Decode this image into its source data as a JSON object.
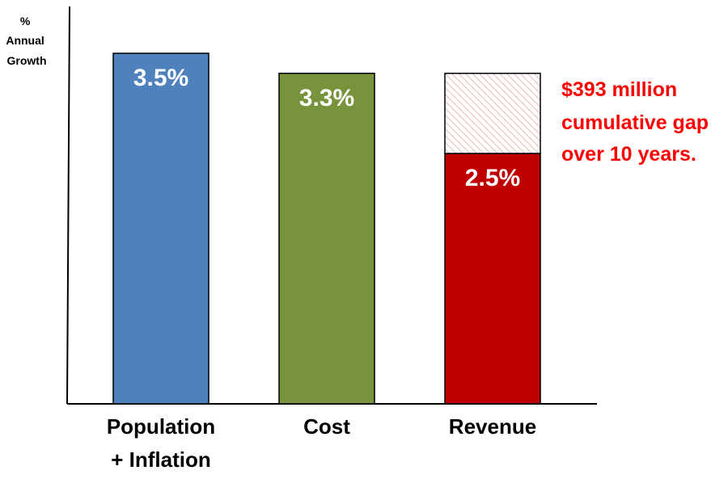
{
  "chart_data": {
    "type": "bar",
    "ylabel": [
      "%",
      "Annual",
      "Growth"
    ],
    "ylim": [
      0,
      3.5
    ],
    "grid": false,
    "categories": [
      [
        "Population",
        "+ Inflation"
      ],
      [
        "Cost"
      ],
      [
        "Revenue"
      ]
    ],
    "values": [
      3.5,
      3.3,
      2.5
    ],
    "value_labels": [
      "3.5%",
      "3.3%",
      "2.5%"
    ],
    "colors": [
      "#4F81BD",
      "#77933C",
      "#C00000"
    ],
    "gap": {
      "category": "Revenue",
      "from": 2.5,
      "to": 3.3,
      "fill": "hatched",
      "hatch_color": "#E6B9B8"
    },
    "annotation": {
      "lines": [
        "$393 million",
        "cumulative gap",
        "over 10 years."
      ],
      "color": "#FF0000"
    }
  }
}
